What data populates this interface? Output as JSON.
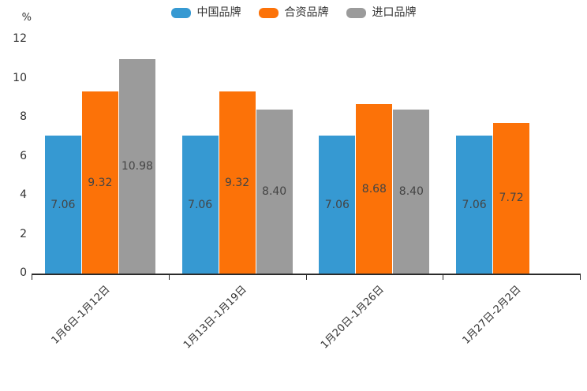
{
  "chart_data": {
    "type": "bar",
    "title": "",
    "unit_label": "%",
    "categories": [
      "1月6日-1月12日",
      "1月13日-1月19日",
      "1月20日-1月26日",
      "1月27日-2月2日"
    ],
    "series": [
      {
        "name": "中国品牌",
        "color": "#3699D2",
        "values": [
          7.06,
          7.06,
          7.06,
          7.06
        ]
      },
      {
        "name": "合资品牌",
        "color": "#FC7208",
        "values": [
          9.32,
          9.32,
          8.68,
          7.72
        ]
      },
      {
        "name": "进口品牌",
        "color": "#9B9B9B",
        "values": [
          10.98,
          8.4,
          8.4,
          null
        ]
      }
    ],
    "data_labels": [
      [
        "7.06",
        "9.32",
        "10.98"
      ],
      [
        "7.06",
        "9.32",
        "8.40"
      ],
      [
        "7.06",
        "8.68",
        "8.40"
      ],
      [
        "7.06",
        "7.72"
      ]
    ],
    "ylim": [
      0,
      12
    ],
    "y_ticks": [
      0,
      2,
      4,
      6,
      8,
      10,
      12
    ],
    "grid": false,
    "legend_position": "top-center",
    "xlabel": "",
    "ylabel": "%"
  },
  "styles": {
    "axis_color": "#2b2b2b",
    "tick_label_color": "#333333",
    "value_label_color": "#444444",
    "background": "#ffffff"
  }
}
